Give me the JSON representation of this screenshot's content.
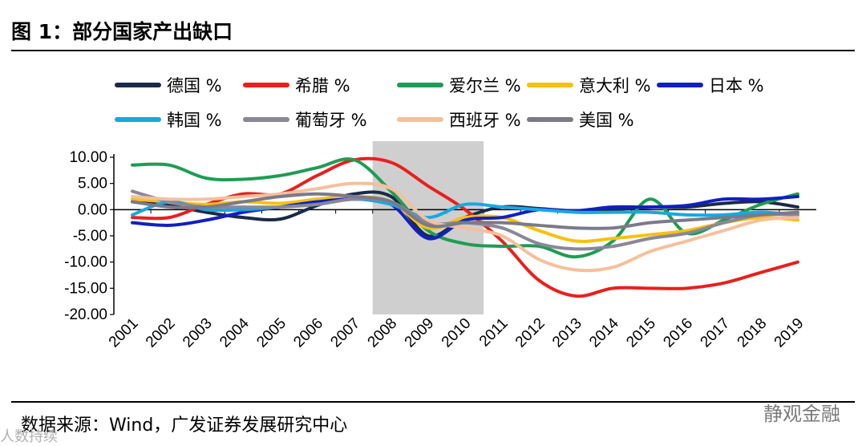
{
  "header": {
    "title": "图 1：部分国家产出缺口"
  },
  "footer": {
    "source": "数据来源：Wind，广发证券发展研究中心",
    "watermark": "静观金融",
    "watermark2": "人数持续"
  },
  "chart_data": {
    "type": "line",
    "title": "图 1：部分国家产出缺口",
    "xlabel": "",
    "ylabel": "",
    "ylim": [
      -20,
      10
    ],
    "yticks": [
      10,
      5,
      0,
      -5,
      -10,
      -15,
      -20
    ],
    "ytick_labels": [
      "10.00",
      "5.00",
      "0.00",
      "-5.00",
      "-10.00",
      "-15.00",
      "-20.00"
    ],
    "categories": [
      "2001",
      "2002",
      "2003",
      "2004",
      "2005",
      "2006",
      "2007",
      "2008",
      "2009",
      "2010",
      "2011",
      "2012",
      "2013",
      "2014",
      "2015",
      "2016",
      "2017",
      "2018",
      "2019"
    ],
    "shaded_region": [
      "2008",
      "2010"
    ],
    "legend_position": "top",
    "series": [
      {
        "name": "德国 %",
        "color": "#1a2a4a",
        "values": [
          1.5,
          0.8,
          -0.5,
          -1.5,
          -1.8,
          0.8,
          3.0,
          2.5,
          -5.0,
          -1.5,
          0.5,
          0.2,
          -0.3,
          0.0,
          0.5,
          0.5,
          1.2,
          1.5,
          0.5
        ]
      },
      {
        "name": "希腊 %",
        "color": "#e8201e",
        "values": [
          -1.5,
          -1.5,
          1.0,
          3.0,
          3.0,
          6.5,
          9.5,
          9.0,
          4.5,
          0.0,
          -6.0,
          -13.5,
          -16.5,
          -15.0,
          -15.0,
          -15.0,
          -14.0,
          -12.0,
          -10.0
        ]
      },
      {
        "name": "爱尔兰 %",
        "color": "#1f9c54",
        "values": [
          8.5,
          8.5,
          6.0,
          5.8,
          6.5,
          8.0,
          9.5,
          3.5,
          -4.0,
          -6.5,
          -7.0,
          -7.0,
          -9.0,
          -6.0,
          2.0,
          -4.5,
          -2.0,
          1.0,
          3.0
        ]
      },
      {
        "name": "意大利 %",
        "color": "#f8c010",
        "values": [
          2.0,
          1.5,
          1.0,
          1.5,
          1.2,
          2.0,
          2.5,
          1.5,
          -3.5,
          -1.5,
          -1.5,
          -4.0,
          -6.0,
          -5.5,
          -4.8,
          -4.0,
          -2.5,
          -1.5,
          -2.0
        ]
      },
      {
        "name": "日本 %",
        "color": "#1020c0",
        "values": [
          -2.5,
          -3.0,
          -2.0,
          -0.5,
          0.5,
          1.5,
          2.0,
          1.0,
          -5.5,
          -2.0,
          -1.5,
          0.0,
          -0.2,
          0.5,
          0.5,
          0.8,
          2.0,
          2.0,
          2.5
        ]
      },
      {
        "name": "韩国 %",
        "color": "#18a8e0",
        "values": [
          -1.0,
          1.5,
          0.0,
          0.0,
          0.5,
          1.0,
          2.0,
          1.0,
          -1.5,
          1.0,
          0.5,
          0.0,
          -0.5,
          -0.5,
          -0.5,
          -1.0,
          -1.0,
          -0.5,
          -1.0
        ]
      },
      {
        "name": "葡萄牙 %",
        "color": "#888899",
        "values": [
          3.5,
          1.5,
          0.5,
          0.5,
          0.5,
          1.0,
          2.0,
          1.5,
          -2.5,
          -2.5,
          -3.5,
          -6.5,
          -7.5,
          -7.0,
          -5.5,
          -4.5,
          -2.5,
          -1.0,
          -1.0
        ]
      },
      {
        "name": "西班牙 %",
        "color": "#f5c09c",
        "values": [
          2.5,
          2.0,
          2.0,
          2.5,
          3.0,
          4.0,
          5.0,
          4.0,
          -2.0,
          -3.5,
          -5.0,
          -9.5,
          -11.5,
          -11.0,
          -8.0,
          -6.0,
          -4.0,
          -2.0,
          -1.5
        ]
      },
      {
        "name": "美国 %",
        "color": "#7a7a8a",
        "values": [
          1.5,
          0.5,
          0.5,
          1.5,
          2.5,
          3.0,
          2.5,
          1.5,
          -3.0,
          -2.5,
          -2.5,
          -3.0,
          -3.5,
          -3.5,
          -2.5,
          -2.0,
          -1.5,
          -1.0,
          -0.5
        ]
      }
    ]
  }
}
